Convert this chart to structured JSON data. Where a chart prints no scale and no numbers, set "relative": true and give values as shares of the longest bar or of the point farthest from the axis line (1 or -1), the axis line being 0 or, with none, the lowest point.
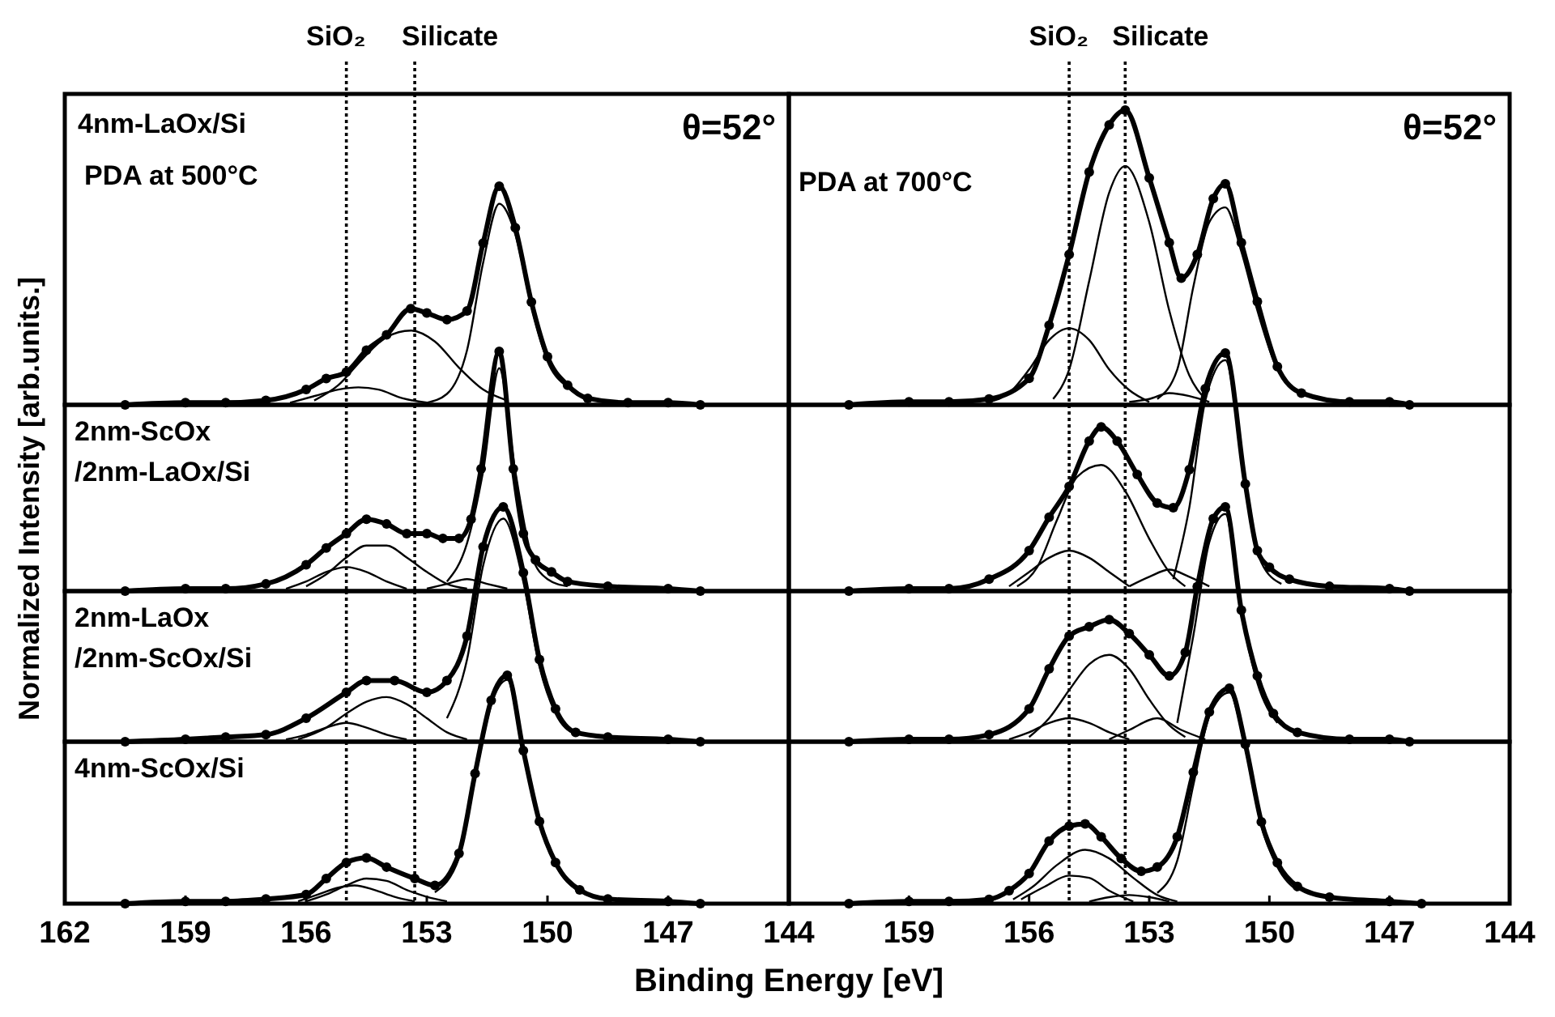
{
  "chart_data": [
    {
      "type": "line",
      "relative": true,
      "xlim": [
        162,
        144
      ],
      "tick_labels": false,
      "ylabel": "Normalized Intensity [arb.units.]",
      "annotations": [
        "4nm-LaOx/Si",
        "PDA at 500°C",
        "θ=52°"
      ],
      "ref_lines": [
        {
          "axis": "x",
          "value": 155.0,
          "label": "SiO₂",
          "line_style": "dotted"
        },
        {
          "axis": "x",
          "value": 153.3,
          "label": "Silicate",
          "line_style": "dotted"
        }
      ],
      "series": [
        {
          "type": "line",
          "color": "#000000",
          "marker": "circle",
          "x": [
            160.5,
            159,
            158,
            157,
            156,
            155.5,
            155,
            154.5,
            154,
            153.4,
            153,
            152.5,
            152,
            151.6,
            151.2,
            150.8,
            150.4,
            150,
            149.5,
            149,
            148,
            147,
            146.2
          ],
          "values": [
            0,
            0.01,
            0.01,
            0.02,
            0.07,
            0.12,
            0.15,
            0.25,
            0.32,
            0.44,
            0.42,
            0.39,
            0.43,
            0.74,
            1,
            0.81,
            0.47,
            0.22,
            0.09,
            0.03,
            0.01,
            0.01,
            0
          ]
        },
        {
          "type": "line",
          "color": "#000000",
          "x": [
            155.8,
            155.2,
            154.6,
            154,
            153.4,
            152.8,
            152.2,
            151.6,
            151.0
          ],
          "values": [
            0.02,
            0.09,
            0.21,
            0.31,
            0.34,
            0.29,
            0.17,
            0.07,
            0.02
          ]
        },
        {
          "type": "line",
          "color": "#000000",
          "x": [
            156.4,
            155.8,
            155.2,
            154.7,
            154.2,
            153.6,
            153.0
          ],
          "values": [
            0.01,
            0.04,
            0.07,
            0.08,
            0.07,
            0.03,
            0.01
          ]
        },
        {
          "type": "line",
          "color": "#000000",
          "x": [
            153,
            152.5,
            152,
            151.6,
            151.2,
            150.8,
            150.4,
            150,
            149.5,
            149
          ],
          "values": [
            0.01,
            0.05,
            0.25,
            0.65,
            0.92,
            0.78,
            0.45,
            0.2,
            0.08,
            0.03
          ]
        }
      ]
    },
    {
      "type": "line",
      "relative": true,
      "xlim": [
        162,
        144
      ],
      "tick_labels": false,
      "annotations": [
        "PDA at 700°C",
        "θ=52°"
      ],
      "ref_lines": [
        {
          "axis": "x",
          "value": 155.0,
          "label": "SiO₂",
          "line_style": "dotted"
        },
        {
          "axis": "x",
          "value": 153.6,
          "label": "Silicate",
          "line_style": "dotted"
        }
      ],
      "series": [
        {
          "type": "line",
          "color": "#000000",
          "marker": "circle",
          "x": [
            160.5,
            159,
            158,
            157,
            156,
            155.5,
            155,
            154.5,
            154,
            153.6,
            153,
            152.5,
            152.2,
            151.8,
            151.4,
            151.1,
            150.7,
            150.3,
            149.8,
            149.2,
            148,
            147,
            146.5
          ],
          "values": [
            0,
            0.01,
            0.01,
            0.02,
            0.09,
            0.27,
            0.51,
            0.79,
            0.95,
            1,
            0.77,
            0.55,
            0.43,
            0.51,
            0.7,
            0.75,
            0.55,
            0.35,
            0.13,
            0.04,
            0.01,
            0.01,
            0
          ]
        },
        {
          "type": "line",
          "color": "#000000",
          "x": [
            155.4,
            155,
            154.5,
            154,
            153.6,
            153,
            152.5,
            152,
            151.6
          ],
          "values": [
            0.02,
            0.12,
            0.42,
            0.72,
            0.81,
            0.62,
            0.32,
            0.1,
            0.02
          ]
        },
        {
          "type": "line",
          "color": "#000000",
          "x": [
            157,
            156.5,
            156,
            155.5,
            155,
            154.5,
            154,
            153.5,
            153
          ],
          "values": [
            0.01,
            0.04,
            0.12,
            0.22,
            0.26,
            0.22,
            0.12,
            0.05,
            0.01
          ]
        },
        {
          "type": "line",
          "color": "#000000",
          "x": [
            152.8,
            152.3,
            151.9,
            151.5,
            151.1,
            150.7,
            150.3,
            149.8,
            149.2
          ],
          "values": [
            0.02,
            0.12,
            0.4,
            0.62,
            0.67,
            0.52,
            0.32,
            0.12,
            0.04
          ]
        },
        {
          "type": "line",
          "color": "#000000",
          "x": [
            153.5,
            153,
            152.5,
            152,
            151.5
          ],
          "values": [
            0.01,
            0.02,
            0.04,
            0.03,
            0.01
          ]
        }
      ]
    },
    {
      "type": "line",
      "relative": true,
      "xlim": [
        162,
        144
      ],
      "tick_labels": false,
      "annotations": [
        "2nm-ScOx",
        "/2nm-LaOx/Si"
      ],
      "ref_lines": [
        {
          "axis": "x",
          "value": 155.0,
          "line_style": "dotted"
        },
        {
          "axis": "x",
          "value": 153.3,
          "line_style": "dotted"
        }
      ],
      "series": [
        {
          "type": "line",
          "color": "#000000",
          "marker": "circle",
          "x": [
            160.5,
            159,
            158,
            157,
            156,
            155.5,
            155,
            154.5,
            154,
            153.5,
            153,
            152.6,
            152.2,
            151.9,
            151.65,
            151.2,
            150.85,
            150.6,
            150.3,
            149.9,
            149.5,
            148.5,
            147,
            146.2
          ],
          "values": [
            0,
            0.01,
            0.01,
            0.03,
            0.11,
            0.18,
            0.24,
            0.3,
            0.28,
            0.24,
            0.24,
            0.22,
            0.22,
            0.3,
            0.51,
            1,
            0.51,
            0.24,
            0.13,
            0.08,
            0.04,
            0.02,
            0.01,
            0
          ]
        },
        {
          "type": "line",
          "color": "#000000",
          "x": [
            156,
            155.5,
            155,
            154.5,
            154,
            153.5,
            153,
            152.5,
            152
          ],
          "values": [
            0.02,
            0.07,
            0.14,
            0.19,
            0.19,
            0.14,
            0.08,
            0.03,
            0.01
          ]
        },
        {
          "type": "line",
          "color": "#000000",
          "x": [
            156.5,
            156,
            155.5,
            155,
            154.5,
            154,
            153.5
          ],
          "values": [
            0.01,
            0.04,
            0.08,
            0.1,
            0.08,
            0.04,
            0.01
          ]
        },
        {
          "type": "line",
          "color": "#000000",
          "x": [
            153,
            152.5,
            152,
            151.5,
            151
          ],
          "values": [
            0.01,
            0.03,
            0.05,
            0.03,
            0.01
          ]
        },
        {
          "type": "line",
          "color": "#000000",
          "x": [
            152.5,
            152,
            151.6,
            151.2,
            150.8,
            150.4,
            150,
            149.5
          ],
          "values": [
            0.04,
            0.2,
            0.5,
            0.93,
            0.5,
            0.15,
            0.05,
            0.02
          ]
        }
      ]
    },
    {
      "type": "line",
      "relative": true,
      "xlim": [
        162,
        144
      ],
      "tick_labels": false,
      "ref_lines": [
        {
          "axis": "x",
          "value": 155.0,
          "line_style": "dotted"
        },
        {
          "axis": "x",
          "value": 153.6,
          "line_style": "dotted"
        }
      ],
      "series": [
        {
          "type": "line",
          "color": "#000000",
          "marker": "circle",
          "x": [
            160.5,
            159,
            158,
            157,
            156,
            155.5,
            155,
            154.5,
            154.2,
            153.8,
            153.3,
            152.8,
            152.4,
            152.0,
            151.6,
            151.1,
            150.6,
            150.3,
            150,
            149.5,
            148.5,
            147,
            146.5
          ],
          "values": [
            0,
            0.01,
            0.01,
            0.05,
            0.17,
            0.31,
            0.44,
            0.63,
            0.69,
            0.63,
            0.49,
            0.37,
            0.35,
            0.51,
            0.85,
            1,
            0.45,
            0.17,
            0.1,
            0.05,
            0.02,
            0.01,
            0
          ]
        },
        {
          "type": "line",
          "color": "#000000",
          "x": [
            156.3,
            155.8,
            155.3,
            154.8,
            154.2,
            153.6,
            153,
            152.5,
            152.1
          ],
          "values": [
            0.02,
            0.1,
            0.3,
            0.48,
            0.53,
            0.42,
            0.22,
            0.08,
            0.02
          ]
        },
        {
          "type": "line",
          "color": "#000000",
          "x": [
            156.5,
            156,
            155.5,
            155,
            154.5,
            154,
            153.5
          ],
          "values": [
            0.02,
            0.08,
            0.14,
            0.17,
            0.14,
            0.08,
            0.02
          ]
        },
        {
          "type": "line",
          "color": "#000000",
          "x": [
            153.5,
            153,
            152.5,
            152,
            151.5
          ],
          "values": [
            0.02,
            0.06,
            0.09,
            0.06,
            0.02
          ]
        },
        {
          "type": "line",
          "color": "#000000",
          "x": [
            152.4,
            152,
            151.6,
            151.1,
            150.6,
            150.2,
            149.7
          ],
          "values": [
            0.05,
            0.35,
            0.8,
            0.97,
            0.45,
            0.12,
            0.03
          ]
        }
      ]
    },
    {
      "type": "line",
      "relative": true,
      "xlim": [
        162,
        144
      ],
      "tick_labels": false,
      "annotations": [
        "2nm-LaOx",
        "/2nm-ScOx/Si"
      ],
      "ref_lines": [
        {
          "axis": "x",
          "value": 155.0,
          "line_style": "dotted"
        },
        {
          "axis": "x",
          "value": 153.3,
          "line_style": "dotted"
        }
      ],
      "series": [
        {
          "type": "line",
          "color": "#000000",
          "marker": "circle",
          "x": [
            160.5,
            159,
            158,
            157,
            156,
            155,
            154.5,
            153.8,
            153,
            152.5,
            152,
            151.6,
            151.1,
            150.6,
            150.2,
            149.8,
            149.3,
            148.5,
            147,
            146.2
          ],
          "values": [
            0,
            0.01,
            0.02,
            0.03,
            0.1,
            0.21,
            0.26,
            0.26,
            0.21,
            0.26,
            0.45,
            0.83,
            1,
            0.72,
            0.35,
            0.14,
            0.04,
            0.02,
            0.01,
            0
          ]
        },
        {
          "type": "line",
          "color": "#000000",
          "x": [
            156.2,
            155.5,
            155,
            154.5,
            154,
            153.5,
            153,
            152.5,
            152
          ],
          "values": [
            0.01,
            0.06,
            0.12,
            0.17,
            0.19,
            0.16,
            0.1,
            0.04,
            0.01
          ]
        },
        {
          "type": "line",
          "color": "#000000",
          "x": [
            156.5,
            156,
            155.5,
            155,
            154.5,
            154,
            153.5
          ],
          "values": [
            0.01,
            0.03,
            0.06,
            0.08,
            0.06,
            0.03,
            0.01
          ]
        },
        {
          "type": "line",
          "color": "#000000",
          "x": [
            152.5,
            152,
            151.6,
            151.1,
            150.6,
            150.2,
            149.8,
            149.3
          ],
          "values": [
            0.1,
            0.35,
            0.75,
            0.95,
            0.68,
            0.32,
            0.12,
            0.03
          ]
        }
      ]
    },
    {
      "type": "line",
      "relative": true,
      "xlim": [
        162,
        144
      ],
      "tick_labels": false,
      "ref_lines": [
        {
          "axis": "x",
          "value": 155.0,
          "line_style": "dotted"
        },
        {
          "axis": "x",
          "value": 153.6,
          "line_style": "dotted"
        }
      ],
      "series": [
        {
          "type": "line",
          "color": "#000000",
          "marker": "circle",
          "x": [
            160.5,
            159,
            158,
            157,
            156,
            155.5,
            155,
            154.5,
            154,
            153.5,
            153,
            152.5,
            152.1,
            151.8,
            151.4,
            151.1,
            150.7,
            150.3,
            149.9,
            149.3,
            148,
            147,
            146.5
          ],
          "values": [
            0,
            0.01,
            0.01,
            0.03,
            0.14,
            0.31,
            0.45,
            0.49,
            0.52,
            0.46,
            0.37,
            0.28,
            0.38,
            0.66,
            0.95,
            1,
            0.56,
            0.28,
            0.12,
            0.04,
            0.01,
            0.01,
            0
          ]
        },
        {
          "type": "line",
          "color": "#000000",
          "x": [
            156,
            155.5,
            155,
            154.5,
            154,
            153.5,
            153,
            152.5,
            152.1
          ],
          "values": [
            0.02,
            0.1,
            0.22,
            0.33,
            0.37,
            0.31,
            0.18,
            0.07,
            0.02
          ]
        },
        {
          "type": "line",
          "color": "#000000",
          "x": [
            156.5,
            156,
            155.5,
            155,
            154.5,
            154,
            153.5
          ],
          "values": [
            0.01,
            0.04,
            0.08,
            0.1,
            0.08,
            0.04,
            0.01
          ]
        },
        {
          "type": "line",
          "color": "#000000",
          "x": [
            154,
            153.5,
            152.8,
            152.2,
            151.6
          ],
          "values": [
            0.01,
            0.05,
            0.1,
            0.05,
            0.01
          ]
        },
        {
          "type": "line",
          "color": "#000000",
          "x": [
            152.3,
            151.9,
            151.5,
            151.1,
            150.7,
            150.3,
            149.8
          ],
          "values": [
            0.08,
            0.45,
            0.85,
            0.97,
            0.55,
            0.25,
            0.08
          ]
        }
      ]
    },
    {
      "type": "line",
      "relative": true,
      "xlim": [
        162,
        144
      ],
      "xticks": [
        162,
        159,
        156,
        153,
        150,
        147,
        144
      ],
      "tick_labels": "x",
      "xlabel": "Binding Energy [eV]",
      "annotations": [
        "4nm-ScOx/Si"
      ],
      "ref_lines": [
        {
          "axis": "x",
          "value": 155.0,
          "line_style": "dotted"
        },
        {
          "axis": "x",
          "value": 153.3,
          "line_style": "dotted"
        }
      ],
      "series": [
        {
          "type": "line",
          "color": "#000000",
          "marker": "circle",
          "x": [
            160.5,
            159,
            158,
            157,
            156,
            155.5,
            155,
            154.5,
            154,
            153.3,
            152.8,
            152.2,
            151.8,
            151.4,
            151.0,
            150.6,
            150.2,
            149.8,
            149.2,
            148.5,
            147,
            146.2
          ],
          "values": [
            0,
            0.01,
            0.01,
            0.02,
            0.04,
            0.11,
            0.18,
            0.2,
            0.16,
            0.11,
            0.08,
            0.22,
            0.57,
            0.89,
            1,
            0.67,
            0.36,
            0.18,
            0.06,
            0.02,
            0.01,
            0
          ]
        },
        {
          "type": "line",
          "color": "#000000",
          "x": [
            156,
            155.5,
            155,
            154.5,
            154,
            153.5,
            153,
            152.5
          ],
          "values": [
            0.01,
            0.04,
            0.08,
            0.11,
            0.1,
            0.06,
            0.03,
            0.01
          ]
        },
        {
          "type": "line",
          "color": "#000000",
          "x": [
            156.2,
            155.7,
            155.2,
            154.8,
            154.3,
            153.8,
            153.3
          ],
          "values": [
            0.01,
            0.04,
            0.07,
            0.08,
            0.06,
            0.03,
            0.01
          ]
        },
        {
          "type": "line",
          "color": "#000000",
          "x": [
            152.8,
            152.2,
            151.8,
            151.4,
            151,
            150.6,
            150.2,
            149.8,
            149.2
          ],
          "values": [
            0.05,
            0.2,
            0.55,
            0.87,
            0.98,
            0.66,
            0.35,
            0.17,
            0.05
          ]
        }
      ]
    },
    {
      "type": "line",
      "relative": true,
      "xlim": [
        162,
        144
      ],
      "xticks": [
        159,
        156,
        153,
        150,
        147,
        144
      ],
      "tick_labels": "x",
      "ref_lines": [
        {
          "axis": "x",
          "value": 155.0,
          "line_style": "dotted"
        },
        {
          "axis": "x",
          "value": 153.6,
          "line_style": "dotted"
        }
      ],
      "series": [
        {
          "type": "line",
          "color": "#000000",
          "marker": "circle",
          "x": [
            160.5,
            159,
            158,
            157,
            156.5,
            156,
            155.5,
            155,
            154.6,
            154.2,
            153.7,
            153.2,
            152.8,
            152.3,
            151.9,
            151.5,
            151,
            150.6,
            150.2,
            149.8,
            149.3,
            148.5,
            147,
            146.2
          ],
          "values": [
            0,
            0.01,
            0.01,
            0.02,
            0.06,
            0.14,
            0.29,
            0.36,
            0.37,
            0.31,
            0.21,
            0.15,
            0.17,
            0.31,
            0.61,
            0.89,
            1,
            0.74,
            0.38,
            0.19,
            0.08,
            0.03,
            0.01,
            0
          ]
        },
        {
          "type": "line",
          "color": "#000000",
          "x": [
            156.4,
            155.9,
            155.3,
            154.6,
            154,
            153.4,
            152.8,
            152.3
          ],
          "values": [
            0.02,
            0.08,
            0.18,
            0.25,
            0.21,
            0.12,
            0.04,
            0.01
          ]
        },
        {
          "type": "line",
          "color": "#000000",
          "x": [
            156.2,
            155.6,
            155,
            154.5,
            154,
            153.4
          ],
          "values": [
            0.02,
            0.08,
            0.13,
            0.12,
            0.06,
            0.01
          ]
        },
        {
          "type": "line",
          "color": "#000000",
          "x": [
            154.5,
            154,
            153.5,
            153,
            152.5
          ],
          "values": [
            0.01,
            0.03,
            0.04,
            0.03,
            0.01
          ]
        },
        {
          "type": "line",
          "color": "#000000",
          "x": [
            152.8,
            152.3,
            151.9,
            151.5,
            151,
            150.6,
            150.2,
            149.8,
            149.3
          ],
          "values": [
            0.05,
            0.2,
            0.55,
            0.87,
            0.98,
            0.72,
            0.36,
            0.17,
            0.06
          ]
        }
      ]
    }
  ]
}
